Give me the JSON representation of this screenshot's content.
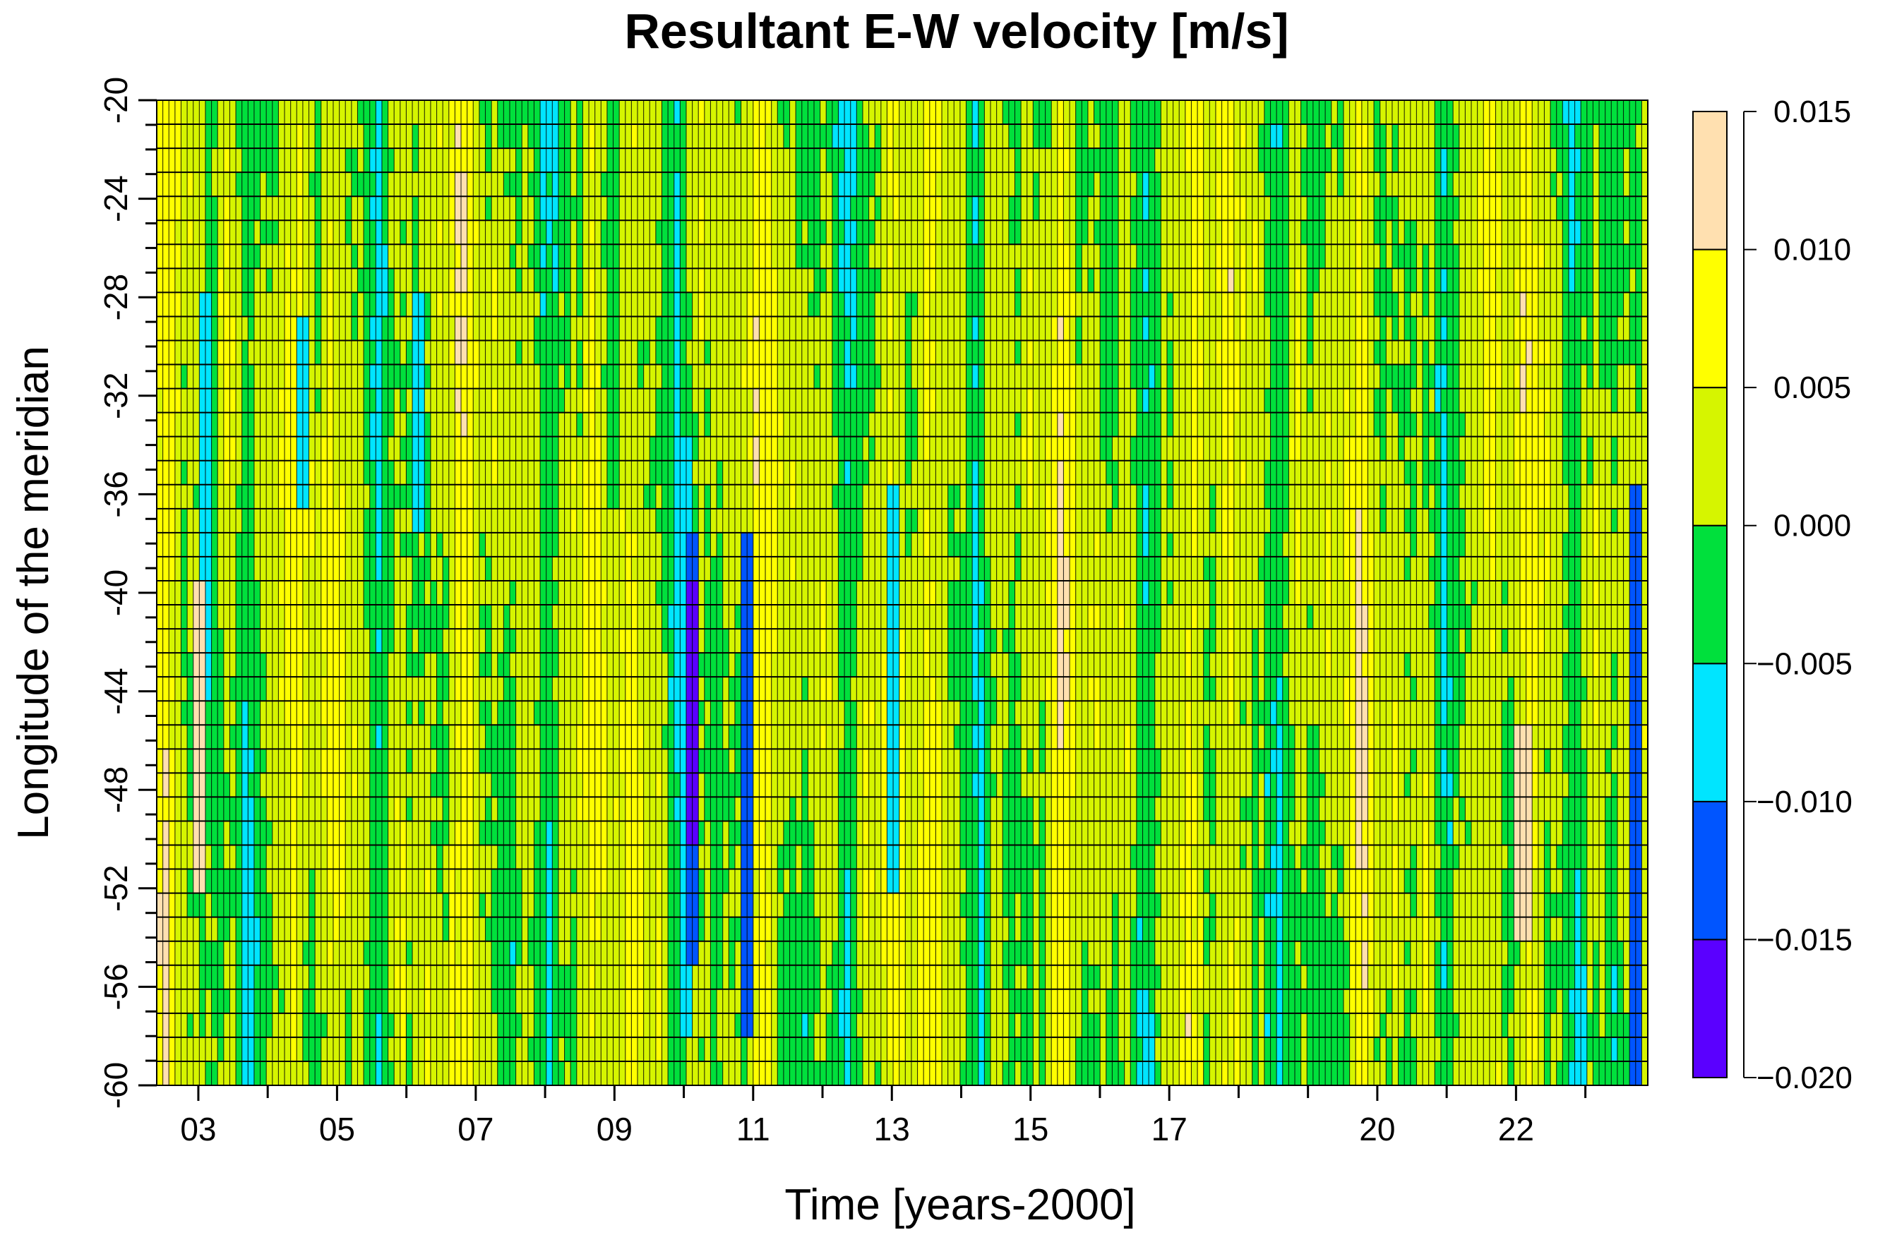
{
  "chart_data": {
    "type": "heatmap",
    "title": "Resultant E-W velocity [m/s]",
    "xlabel": "Time [years-2000]",
    "ylabel": "Longitude of the meridian",
    "xlim": [
      2.4,
      23.9
    ],
    "ylim": [
      -60,
      -20
    ],
    "x_ticks": [
      {
        "value": 3,
        "label": "03"
      },
      {
        "value": 5,
        "label": "05"
      },
      {
        "value": 7,
        "label": "07"
      },
      {
        "value": 9,
        "label": "09"
      },
      {
        "value": 11,
        "label": "11"
      },
      {
        "value": 13,
        "label": "13"
      },
      {
        "value": 15,
        "label": "15"
      },
      {
        "value": 17,
        "label": "17"
      },
      {
        "value": 20,
        "label": "20"
      },
      {
        "value": 22,
        "label": "22"
      }
    ],
    "y_ticks": [
      {
        "value": -20,
        "label": "-20"
      },
      {
        "value": -24,
        "label": "-24"
      },
      {
        "value": -28,
        "label": "-28"
      },
      {
        "value": -32,
        "label": "-32"
      },
      {
        "value": -36,
        "label": "-36"
      },
      {
        "value": -40,
        "label": "-40"
      },
      {
        "value": -44,
        "label": "-44"
      },
      {
        "value": -48,
        "label": "-48"
      },
      {
        "value": -52,
        "label": "-52"
      },
      {
        "value": -56,
        "label": "-56"
      },
      {
        "value": -60,
        "label": "-60"
      }
    ],
    "colorbar": {
      "levels": [
        -0.02,
        -0.015,
        -0.01,
        -0.005,
        0.0,
        0.005,
        0.01,
        0.015
      ],
      "labels": [
        "−0.020",
        "−0.015",
        "−0.010",
        "−0.005",
        "0.000",
        "0.005",
        "0.010",
        "0.015"
      ],
      "colors": [
        "#5a00ff",
        "#0055ff",
        "#00e5ff",
        "#00e03c",
        "#d6f500",
        "#ffff00",
        "#ffe0b0"
      ]
    },
    "grid": {
      "n_time_steps": 245,
      "n_longitudes": 41,
      "grid_lines": true
    },
    "features": [
      {
        "t": 3.1,
        "lon_from": -44,
        "lon_to": -28,
        "value": -0.007
      },
      {
        "t": 4.5,
        "lon_from": -36,
        "lon_to": -29,
        "value": -0.006
      },
      {
        "t": 6.2,
        "lon_from": -37,
        "lon_to": -28,
        "value": -0.007
      },
      {
        "t": 10.05,
        "lon_from": -58,
        "lon_to": -34,
        "value": -0.009
      },
      {
        "t": 10.1,
        "lon_from": -55,
        "lon_to": -38,
        "value": -0.014
      },
      {
        "t": 10.15,
        "lon_from": -50,
        "lon_to": -40,
        "value": -0.016
      },
      {
        "t": 10.9,
        "lon_from": -58,
        "lon_to": -38,
        "value": -0.012
      },
      {
        "t": 13.0,
        "lon_from": -52,
        "lon_to": -36,
        "value": -0.007
      },
      {
        "t": 23.7,
        "lon_from": -60,
        "lon_to": -36,
        "value": -0.013
      },
      {
        "t": 3.0,
        "lon_from": -52,
        "lon_to": -40,
        "value": 0.011
      },
      {
        "t": 22.1,
        "lon_from": -54,
        "lon_to": -46,
        "value": 0.011
      }
    ]
  }
}
